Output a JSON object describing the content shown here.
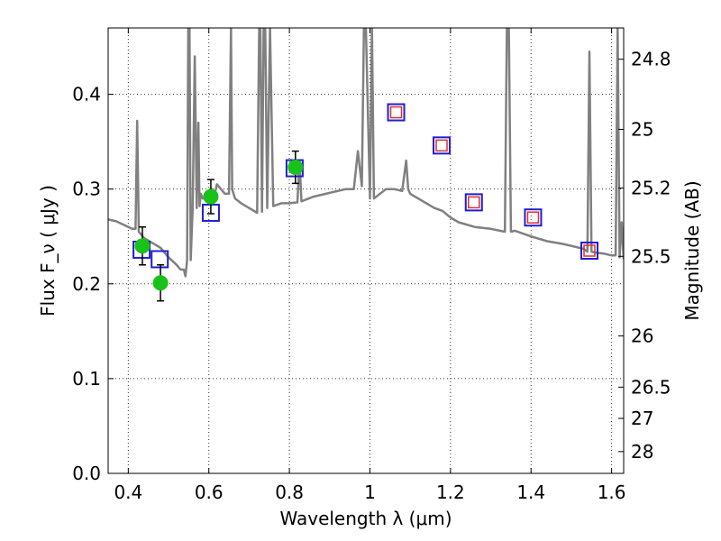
{
  "chart_data": {
    "type": "scatter",
    "xlabel": "Wavelength  λ (μm)",
    "ylabel": "Flux  F_ν  ( μJy )",
    "ylabel_right": "Magnitude (AB)",
    "xlim": [
      0.35,
      1.63
    ],
    "ylim": [
      0.0,
      0.47
    ],
    "grid": true,
    "x_ticks": [
      0.4,
      0.6,
      0.8,
      1.0,
      1.2,
      1.4,
      1.6
    ],
    "x_tick_labels": [
      "0.4",
      "0.6",
      "0.8",
      "1",
      "1.2",
      "1.4",
      "1.6"
    ],
    "y_ticks": [
      0.0,
      0.1,
      0.2,
      0.3,
      0.4
    ],
    "y_tick_labels": [
      "0.0",
      "0.1",
      "0.2",
      "0.3",
      "0.4"
    ],
    "right_ticks": [
      {
        "flux": 0.437,
        "label": "24.8"
      },
      {
        "flux": 0.363,
        "label": "25"
      },
      {
        "flux": 0.301,
        "label": "25.2"
      },
      {
        "flux": 0.229,
        "label": "25.5"
      },
      {
        "flux": 0.145,
        "label": "26"
      },
      {
        "flux": 0.091,
        "label": "26.5"
      },
      {
        "flux": 0.058,
        "label": "27"
      },
      {
        "flux": 0.023,
        "label": "28"
      }
    ],
    "colors": {
      "spectrum": "#808080",
      "observed": "#19c219",
      "model_box": "#1f1fcf",
      "model_inner": "#e03030",
      "errorbar": "#000000",
      "grid": "#333333"
    },
    "series": [
      {
        "role": "model_spectrum",
        "style": "line",
        "x": [
          0.35,
          0.37,
          0.39,
          0.41,
          0.418,
          0.422,
          0.426,
          0.44,
          0.46,
          0.48,
          0.5,
          0.52,
          0.53,
          0.538,
          0.542,
          0.546,
          0.549,
          0.552,
          0.555,
          0.56,
          0.565,
          0.57,
          0.574,
          0.577,
          0.58,
          0.585,
          0.59,
          0.6,
          0.608,
          0.612,
          0.62,
          0.64,
          0.65,
          0.655,
          0.658,
          0.665,
          0.68,
          0.7,
          0.72,
          0.725,
          0.728,
          0.732,
          0.736,
          0.74,
          0.745,
          0.752,
          0.76,
          0.78,
          0.8,
          0.82,
          0.825,
          0.83,
          0.86,
          0.9,
          0.94,
          0.96,
          0.97,
          0.98,
          0.985,
          0.99,
          1.0,
          1.005,
          1.01,
          1.04,
          1.06,
          1.08,
          1.09,
          1.095,
          1.1,
          1.12,
          1.14,
          1.16,
          1.18,
          1.2,
          1.22,
          1.26,
          1.3,
          1.335,
          1.34,
          1.345,
          1.35,
          1.36,
          1.4,
          1.44,
          1.48,
          1.5,
          1.53,
          1.54,
          1.545,
          1.55,
          1.56,
          1.58,
          1.6,
          1.61,
          1.615,
          1.62,
          1.625,
          1.63
        ],
        "y": [
          0.268,
          0.266,
          0.262,
          0.258,
          0.258,
          0.372,
          0.255,
          0.248,
          0.243,
          0.238,
          0.228,
          0.22,
          0.215,
          0.215,
          0.208,
          0.225,
          0.47,
          0.47,
          0.225,
          0.28,
          0.44,
          0.28,
          0.37,
          0.282,
          0.295,
          0.29,
          0.291,
          0.29,
          0.3,
          0.29,
          0.305,
          0.295,
          0.295,
          0.47,
          0.3,
          0.29,
          0.285,
          0.28,
          0.275,
          0.47,
          0.47,
          0.276,
          0.47,
          0.47,
          0.28,
          0.47,
          0.282,
          0.285,
          0.285,
          0.286,
          0.33,
          0.287,
          0.292,
          0.296,
          0.3,
          0.3,
          0.34,
          0.303,
          0.47,
          0.47,
          0.29,
          0.47,
          0.29,
          0.3,
          0.3,
          0.298,
          0.33,
          0.3,
          0.295,
          0.29,
          0.285,
          0.28,
          0.277,
          0.27,
          0.265,
          0.26,
          0.258,
          0.255,
          0.47,
          0.47,
          0.255,
          0.256,
          0.25,
          0.245,
          0.242,
          0.24,
          0.237,
          0.234,
          0.445,
          0.234,
          0.233,
          0.232,
          0.23,
          0.23,
          0.47,
          0.228,
          0.265,
          0.226
        ]
      },
      {
        "role": "observed",
        "style": "circle",
        "x": [
          0.435,
          0.48,
          0.605,
          0.815
        ],
        "y": [
          0.24,
          0.201,
          0.292,
          0.323
        ],
        "yerr": [
          0.02,
          0.019,
          0.018,
          0.017
        ]
      },
      {
        "role": "model_photometry_optical",
        "style": "square",
        "x": [
          0.433,
          0.478,
          0.605,
          0.813
        ],
        "y": [
          0.236,
          0.226,
          0.275,
          0.322
        ]
      },
      {
        "role": "model_photometry_nir",
        "style": "square-with-inner",
        "x": [
          1.065,
          1.178,
          1.258,
          1.405,
          1.545
        ],
        "y": [
          0.381,
          0.346,
          0.286,
          0.27,
          0.235
        ]
      }
    ]
  }
}
